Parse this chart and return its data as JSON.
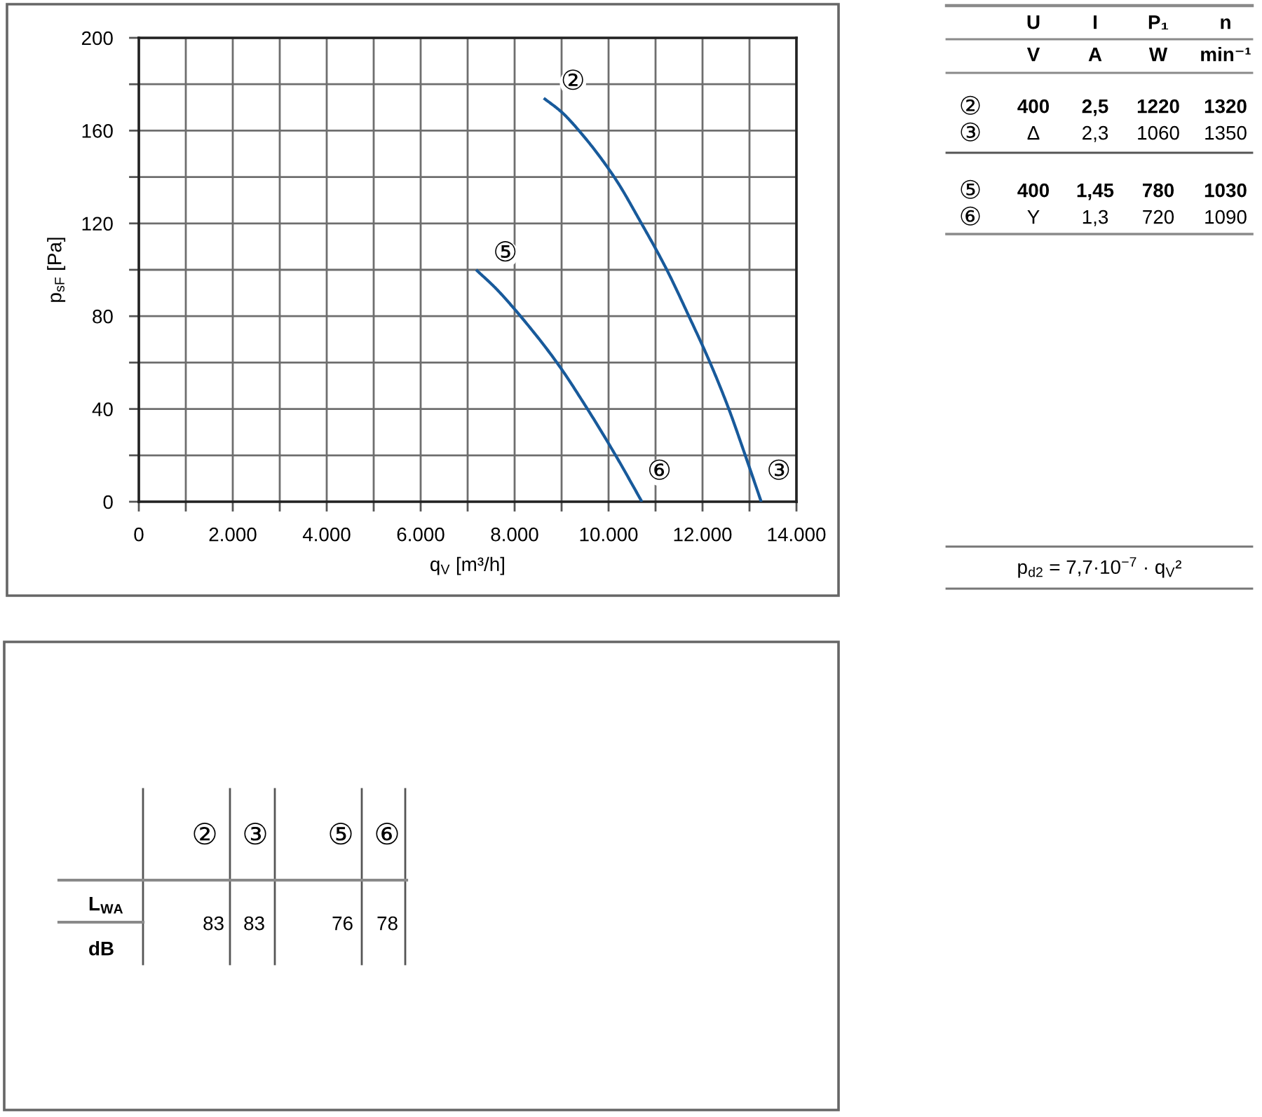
{
  "chart_data": [
    {
      "type": "line",
      "xlabel": "q$_{V}$ [m³/h]",
      "ylabel": "p$_{sF}$ [Pa]",
      "xlim": [
        0,
        14000
      ],
      "ylim": [
        0,
        200
      ],
      "xticks": [
        0,
        {
          "value": 1000,
          "label": null
        },
        {
          "value": 2000,
          "label": "2.000"
        },
        {
          "value": 3000,
          "label": null
        },
        {
          "value": 4000,
          "label": "4.000"
        },
        {
          "value": 5000,
          "label": null
        },
        {
          "value": 6000,
          "label": "6.000"
        },
        {
          "value": 7000,
          "label": null
        },
        {
          "value": 8000,
          "label": "8.000"
        },
        {
          "value": 9000,
          "label": null
        },
        {
          "value": 10000,
          "label": "10.000"
        },
        {
          "value": 11000,
          "label": null
        },
        {
          "value": 12000,
          "label": "12.000"
        },
        {
          "value": 13000,
          "label": null
        },
        {
          "value": 14000,
          "label": "14.000"
        }
      ],
      "yticks": [
        0,
        {
          "value": 20,
          "label": null
        },
        40,
        {
          "value": 60,
          "label": null
        },
        80,
        {
          "value": 100,
          "label": null
        },
        120,
        {
          "value": 140,
          "label": null
        },
        160,
        {
          "value": 180,
          "label": null
        },
        200
      ],
      "grid": true,
      "series": [
        {
          "color": "#185a9b",
          "x": [
            8620,
            9000,
            9370,
            10120,
            10700,
            11240,
            11710,
            12160,
            12560,
            12910,
            13250
          ],
          "values": [
            174,
            168,
            160,
            140,
            120,
            100,
            80,
            60,
            40,
            20,
            0
          ]
        },
        {
          "color": "#185a9b",
          "x": [
            7180,
            7600,
            8000,
            8900,
            9550,
            10150,
            10710
          ],
          "values": [
            100,
            92,
            83,
            60,
            40,
            20,
            0
          ]
        }
      ],
      "annotations": [
        {
          "text": "②",
          "x": 8620,
          "y": 174
        },
        {
          "text": "③",
          "x": 13250,
          "y": 0
        },
        {
          "text": "⑤",
          "x": 7180,
          "y": 100
        },
        {
          "text": "⑥",
          "x": 10710,
          "y": 0
        }
      ]
    },
    {
      "type": "other",
      "categories": [
        "U",
        "I",
        "P₁",
        "n"
      ],
      "y_categories": [
        null,
        "②",
        "③",
        "⑤",
        "⑥"
      ],
      "cell_labels": [
        [
          "V",
          "A",
          "W",
          "min⁻¹"
        ],
        [
          "400",
          "2,5",
          "1220",
          "1320"
        ],
        [
          "Δ",
          "2,3",
          "1060",
          "1350"
        ],
        [
          "400",
          "1,45",
          "780",
          "1030"
        ],
        [
          "Y",
          "1,3",
          "720",
          "1090"
        ]
      ],
      "annotations": [
        "p$_{d2}$ = 7,7·10$^{−7}$ · q$_{V}$²"
      ]
    },
    {
      "type": "other",
      "categories": [
        "②",
        "③",
        "⑤",
        "⑥"
      ],
      "y_categories": [
        "L$_{WA}$"
      ],
      "cell_labels": [
        [
          "83",
          "83",
          "76",
          "78"
        ]
      ],
      "annotations": [
        "dB"
      ]
    }
  ]
}
